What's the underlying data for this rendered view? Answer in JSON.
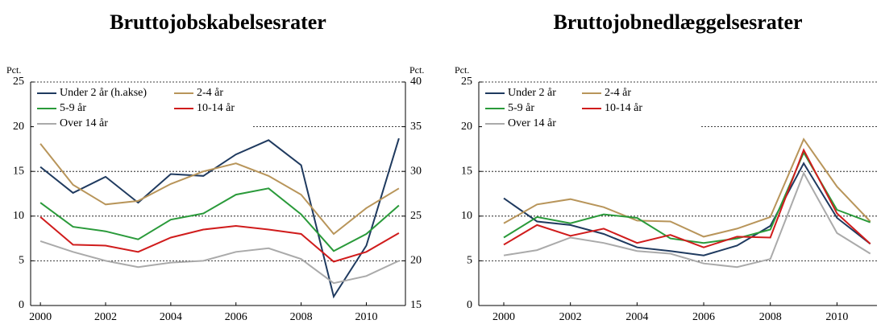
{
  "chart_data": [
    {
      "type": "line",
      "title": "Bruttojobskabelsesrater",
      "y_label": "Pct.",
      "y2_label": "Pct.",
      "x": [
        2000,
        2001,
        2002,
        2003,
        2004,
        2005,
        2006,
        2007,
        2008,
        2009,
        2010,
        2011
      ],
      "xlim": [
        1999.7,
        2011.2
      ],
      "xticks": [
        2000,
        2002,
        2004,
        2006,
        2008,
        2010
      ],
      "ylim": [
        0,
        25
      ],
      "yticks": [
        0,
        5,
        10,
        15,
        20,
        25
      ],
      "y2lim": [
        15,
        40
      ],
      "y2ticks": [
        15,
        20,
        25,
        30,
        35,
        40
      ],
      "grid": true,
      "legend": "upper-left",
      "series": [
        {
          "name": "Under 2 år (h.akse)",
          "color": "#1f3a5f",
          "axis": "y2",
          "values": [
            30.5,
            27.6,
            29.4,
            26.5,
            29.7,
            29.5,
            31.9,
            33.5,
            30.7,
            16.0,
            21.7,
            33.7
          ]
        },
        {
          "name": "2-4 år",
          "color": "#b8955a",
          "values": [
            18.1,
            13.5,
            11.3,
            11.7,
            13.6,
            15.0,
            15.9,
            14.5,
            12.4,
            8.0,
            10.9,
            13.1
          ]
        },
        {
          "name": "5-9 år",
          "color": "#2a9a3a",
          "values": [
            11.5,
            8.8,
            8.3,
            7.4,
            9.6,
            10.3,
            12.4,
            13.1,
            10.2,
            6.1,
            8.0,
            11.2
          ]
        },
        {
          "name": "10-14 år",
          "color": "#d01c1c",
          "values": [
            9.9,
            6.8,
            6.7,
            6.0,
            7.6,
            8.5,
            8.9,
            8.5,
            8.0,
            4.9,
            6.0,
            8.1
          ]
        },
        {
          "name": "Over 14 år",
          "color": "#aaaaaa",
          "values": [
            7.2,
            6.0,
            5.0,
            4.3,
            4.8,
            5.0,
            6.0,
            6.4,
            5.2,
            2.5,
            3.3,
            5.0
          ]
        }
      ]
    },
    {
      "type": "line",
      "title": "Bruttojobnedlæggelsesrater",
      "y_label": "Pct.",
      "x": [
        2000,
        2001,
        2002,
        2003,
        2004,
        2005,
        2006,
        2007,
        2008,
        2009,
        2010,
        2011
      ],
      "xlim": [
        1999.25,
        2011.2
      ],
      "xticks": [
        2000,
        2002,
        2004,
        2006,
        2008,
        2010
      ],
      "ylim": [
        0,
        25
      ],
      "yticks": [
        0,
        5,
        10,
        15,
        20,
        25
      ],
      "grid": true,
      "legend": "upper-left",
      "series": [
        {
          "name": "Under 2 år",
          "color": "#1f3a5f",
          "values": [
            12.0,
            9.4,
            9.0,
            8.0,
            6.5,
            6.1,
            5.6,
            6.7,
            8.9,
            15.9,
            9.8,
            6.9
          ]
        },
        {
          "name": "2-4 år",
          "color": "#b8955a",
          "values": [
            9.2,
            11.3,
            11.9,
            11.0,
            9.5,
            9.4,
            7.7,
            8.6,
            9.9,
            18.6,
            13.3,
            9.4
          ]
        },
        {
          "name": "5-9 år",
          "color": "#2a9a3a",
          "values": [
            7.6,
            9.9,
            9.2,
            10.2,
            9.8,
            7.5,
            7.0,
            7.5,
            8.5,
            17.1,
            10.7,
            9.3
          ]
        },
        {
          "name": "10-14 år",
          "color": "#d01c1c",
          "values": [
            6.8,
            9.0,
            7.8,
            8.6,
            7.0,
            7.9,
            6.5,
            7.7,
            7.6,
            17.4,
            10.3,
            6.9
          ]
        },
        {
          "name": "Over 14 år",
          "color": "#aaaaaa",
          "values": [
            5.6,
            6.2,
            7.6,
            7.0,
            6.1,
            5.8,
            4.7,
            4.3,
            5.2,
            14.8,
            8.1,
            5.8
          ]
        }
      ]
    }
  ]
}
